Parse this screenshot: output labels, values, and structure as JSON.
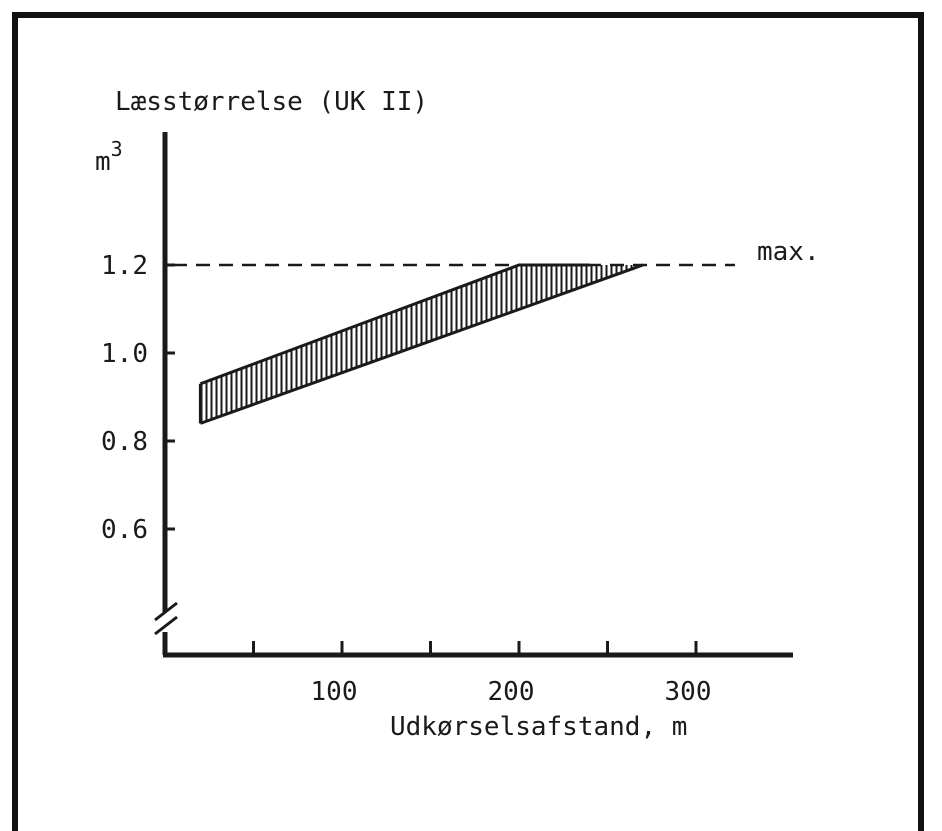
{
  "chart_data": {
    "type": "area",
    "ylabel": "Læsstørrelse (UK II)",
    "yunit_base": "m",
    "yunit_exp": "3",
    "xlabel": "Udkørselsafstand, m",
    "max_label": "max.",
    "max_value": 1.2,
    "y_ticks": [
      "1.2",
      "1.0",
      "0.8",
      "0.6"
    ],
    "y_tick_values": [
      1.2,
      1.0,
      0.8,
      0.6
    ],
    "x_ticks": [
      "100",
      "200",
      "300"
    ],
    "x_tick_values": [
      100,
      200,
      300
    ],
    "x_minor_ticks": [
      50,
      150,
      250
    ],
    "ylim": [
      0.4,
      1.45
    ],
    "xlim": [
      0,
      355
    ],
    "band": {
      "upper": [
        [
          20,
          0.93
        ],
        [
          200,
          1.2
        ],
        [
          240,
          1.2
        ]
      ],
      "lower": [
        [
          20,
          0.84
        ],
        [
          270,
          1.2
        ]
      ]
    },
    "axis_break": true,
    "grid": false
  },
  "colors": {
    "ink": "#1a1a1a",
    "background": "#ffffff"
  }
}
